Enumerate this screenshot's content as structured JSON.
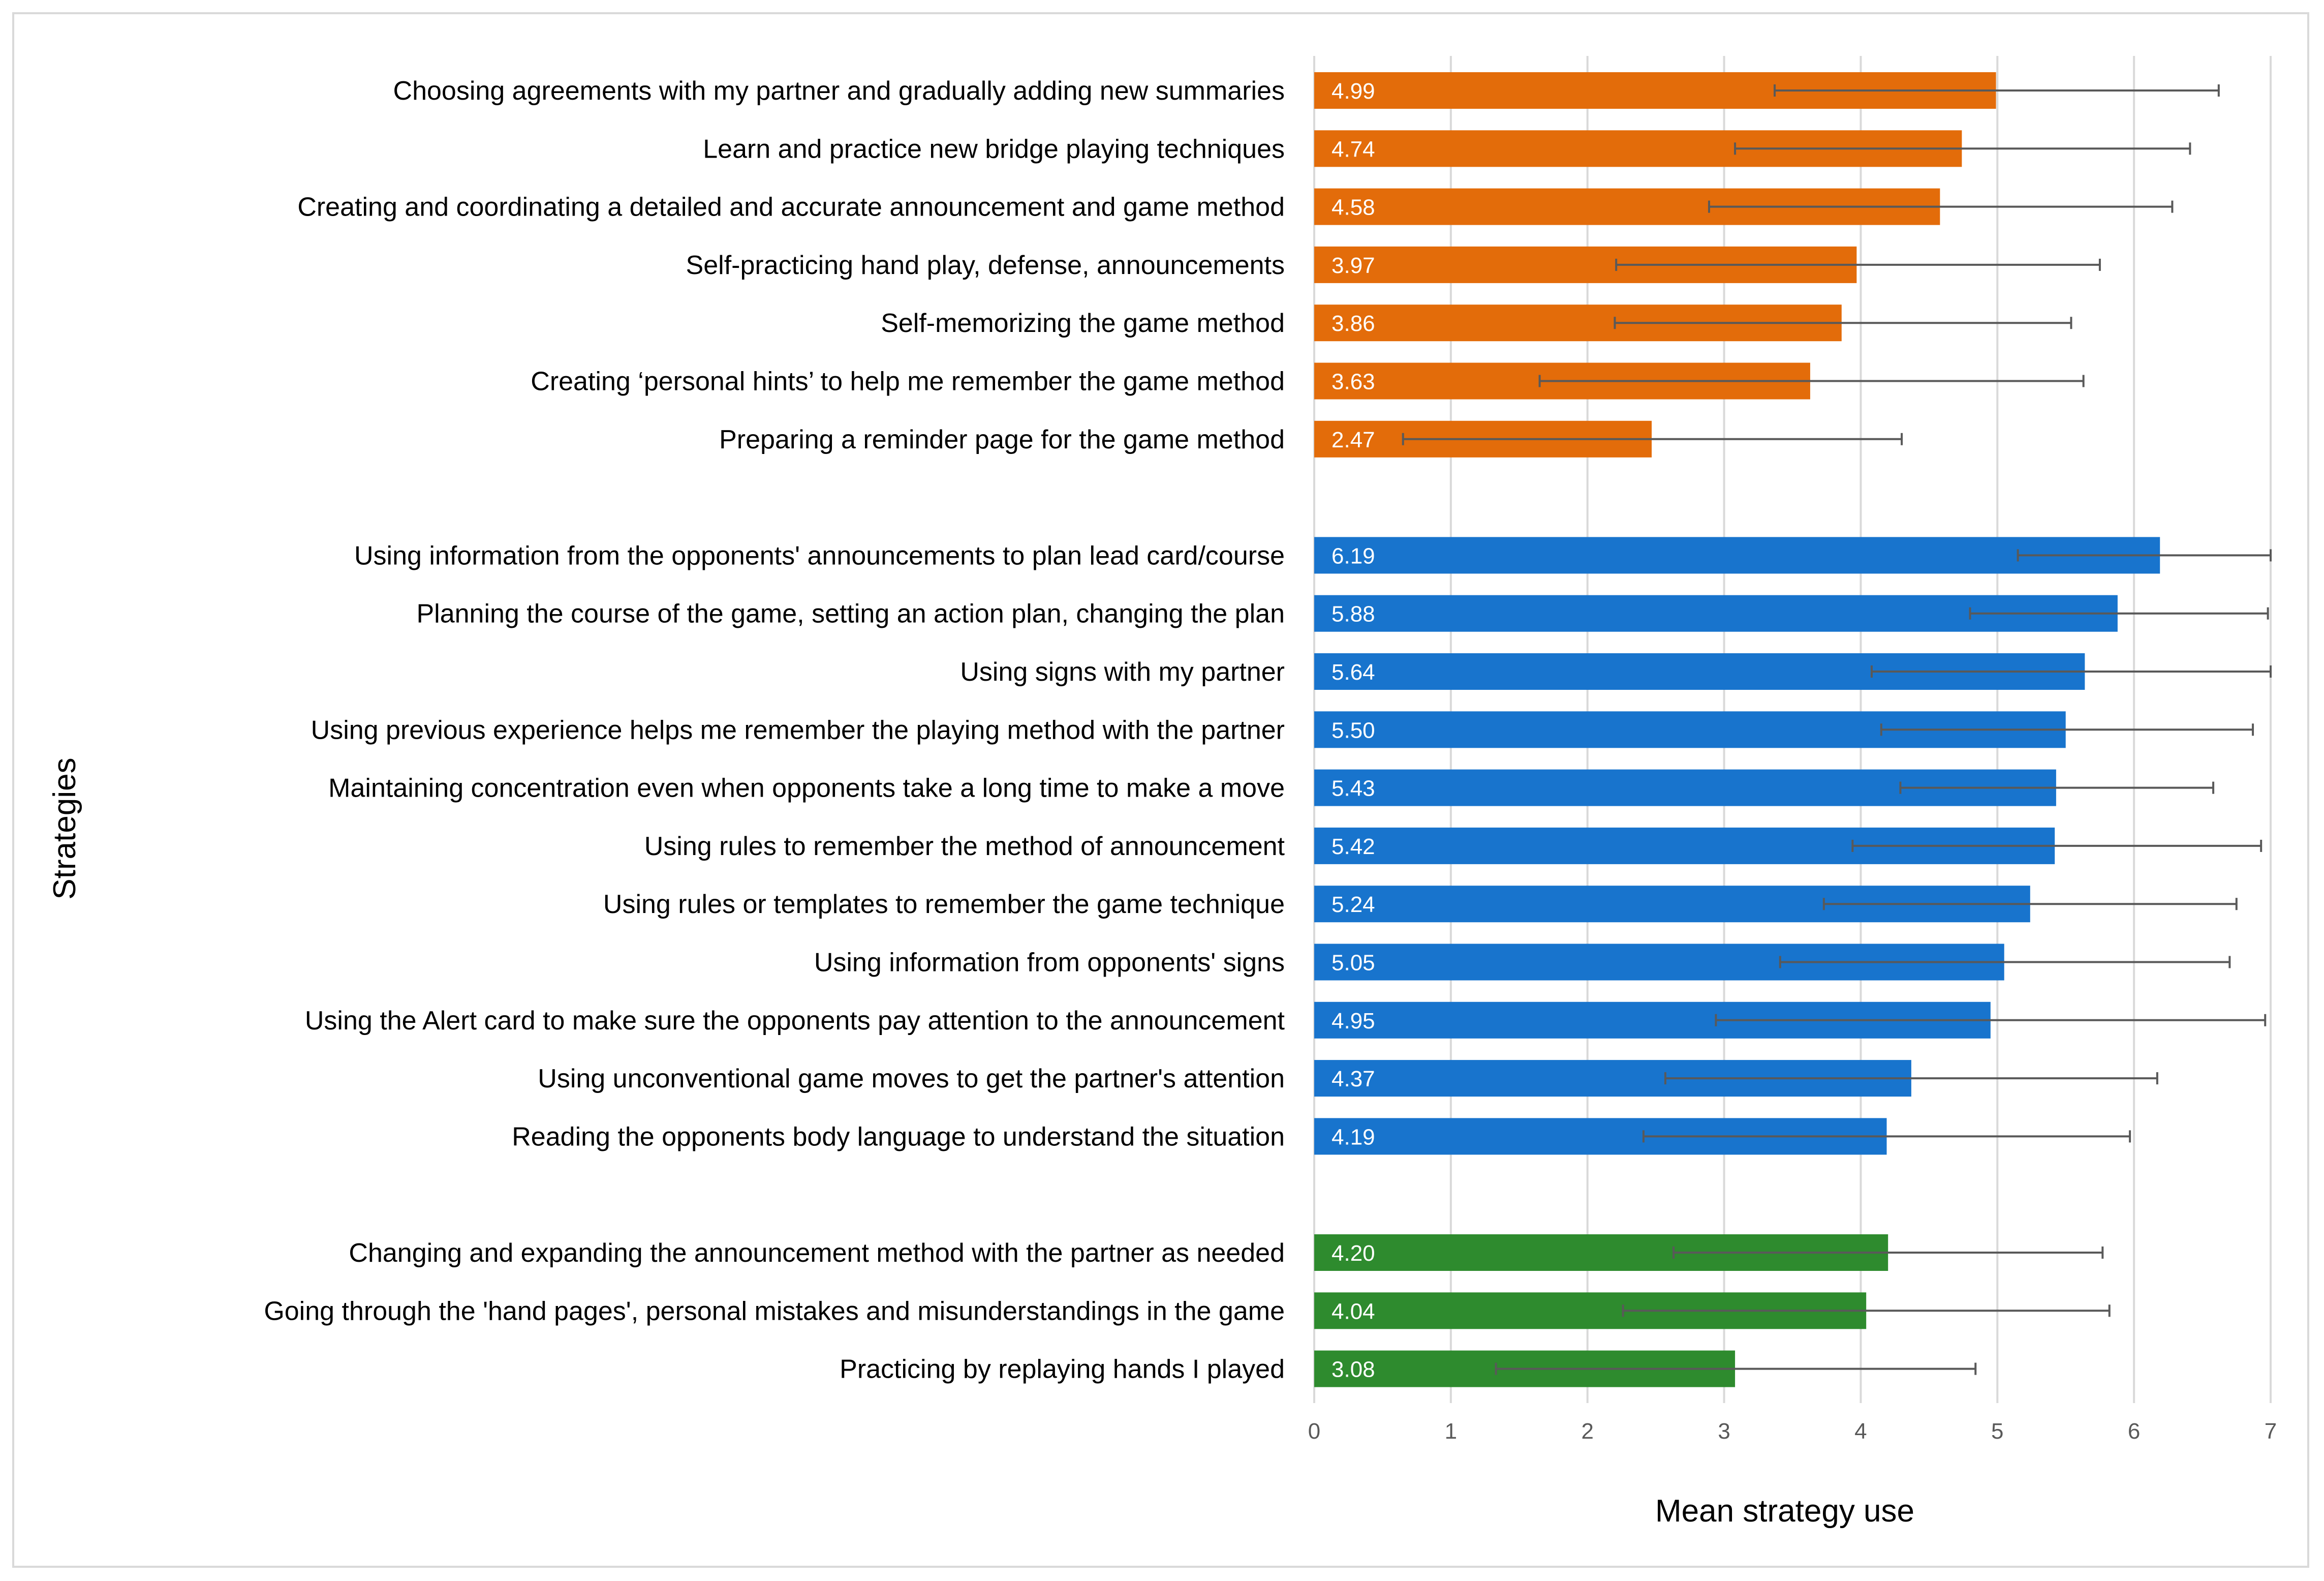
{
  "chart_data": {
    "type": "bar",
    "orientation": "horizontal",
    "title": "",
    "xlabel": "Mean strategy use",
    "ylabel": "Strategies",
    "xlim": [
      0,
      7
    ],
    "xticks": [
      "0",
      "1",
      "2",
      "3",
      "4",
      "5",
      "6",
      "7"
    ],
    "grid": true,
    "legend": "none",
    "groups": [
      {
        "color": "#e36c0a",
        "items": [
          {
            "label": "Choosing agreements with my partner and gradually adding new summaries",
            "value": 4.99,
            "value_label": "4.99",
            "error_low": 3.37,
            "error_high": 6.62
          },
          {
            "label": "Learn and practice new bridge playing techniques",
            "value": 4.74,
            "value_label": "4.74",
            "error_low": 3.08,
            "error_high": 6.41
          },
          {
            "label": "Creating and coordinating a detailed and accurate announcement and game method",
            "value": 4.58,
            "value_label": "4.58",
            "error_low": 2.89,
            "error_high": 6.28
          },
          {
            "label": "Self-practicing hand play, defense, announcements",
            "value": 3.97,
            "value_label": "3.97",
            "error_low": 2.21,
            "error_high": 5.75
          },
          {
            "label": "Self-memorizing the game method",
            "value": 3.86,
            "value_label": "3.86",
            "error_low": 2.2,
            "error_high": 5.54
          },
          {
            "label": "Creating ‘personal hints’ to help me remember the game method",
            "value": 3.63,
            "value_label": "3.63",
            "error_low": 1.65,
            "error_high": 5.63
          },
          {
            "label": "Preparing a reminder page for the game method",
            "value": 2.47,
            "value_label": "2.47",
            "error_low": 0.65,
            "error_high": 4.3
          }
        ]
      },
      {
        "color": "#1874cd",
        "items": [
          {
            "label": "Using information from the opponents' announcements to plan lead card/course",
            "value": 6.19,
            "value_label": "6.19",
            "error_low": 5.15,
            "error_high": 7.0
          },
          {
            "label": "Planning the course of the game, setting an action plan, changing the plan",
            "value": 5.88,
            "value_label": "5.88",
            "error_low": 4.8,
            "error_high": 6.98
          },
          {
            "label": "Using signs with my partner",
            "value": 5.64,
            "value_label": "5.64",
            "error_low": 4.08,
            "error_high": 7.0
          },
          {
            "label": "Using previous experience helps me remember the playing method with the partner",
            "value": 5.5,
            "value_label": "5.50",
            "error_low": 4.15,
            "error_high": 6.87
          },
          {
            "label": "Maintaining concentration even when opponents take a long time to make a move",
            "value": 5.43,
            "value_label": "5.43",
            "error_low": 4.29,
            "error_high": 6.58
          },
          {
            "label": "Using rules to remember the method of announcement",
            "value": 5.42,
            "value_label": "5.42",
            "error_low": 3.94,
            "error_high": 6.93
          },
          {
            "label": "Using rules or templates to remember the game technique",
            "value": 5.24,
            "value_label": "5.24",
            "error_low": 3.73,
            "error_high": 6.75
          },
          {
            "label": "Using information from opponents' signs",
            "value": 5.05,
            "value_label": "5.05",
            "error_low": 3.41,
            "error_high": 6.7
          },
          {
            "label": "Using the Alert card to make sure the opponents pay attention to the announcement",
            "value": 4.95,
            "value_label": "4.95",
            "error_low": 2.94,
            "error_high": 6.96
          },
          {
            "label": "Using unconventional game moves to get the partner's attention",
            "value": 4.37,
            "value_label": "4.37",
            "error_low": 2.57,
            "error_high": 6.17
          },
          {
            "label": "Reading the opponents body language to understand the situation",
            "value": 4.19,
            "value_label": "4.19",
            "error_low": 2.41,
            "error_high": 5.97
          }
        ]
      },
      {
        "color": "#2e8b2e",
        "items": [
          {
            "label": "Changing and expanding the announcement method with the partner as needed",
            "value": 4.2,
            "value_label": "4.20",
            "error_low": 2.63,
            "error_high": 5.77
          },
          {
            "label": "Going through the 'hand pages', personal mistakes and misunderstandings in the game",
            "value": 4.04,
            "value_label": "4.04",
            "error_low": 2.26,
            "error_high": 5.82
          },
          {
            "label": "Practicing by replaying hands I played",
            "value": 3.08,
            "value_label": "3.08",
            "error_low": 1.33,
            "error_high": 4.84
          }
        ]
      }
    ]
  }
}
